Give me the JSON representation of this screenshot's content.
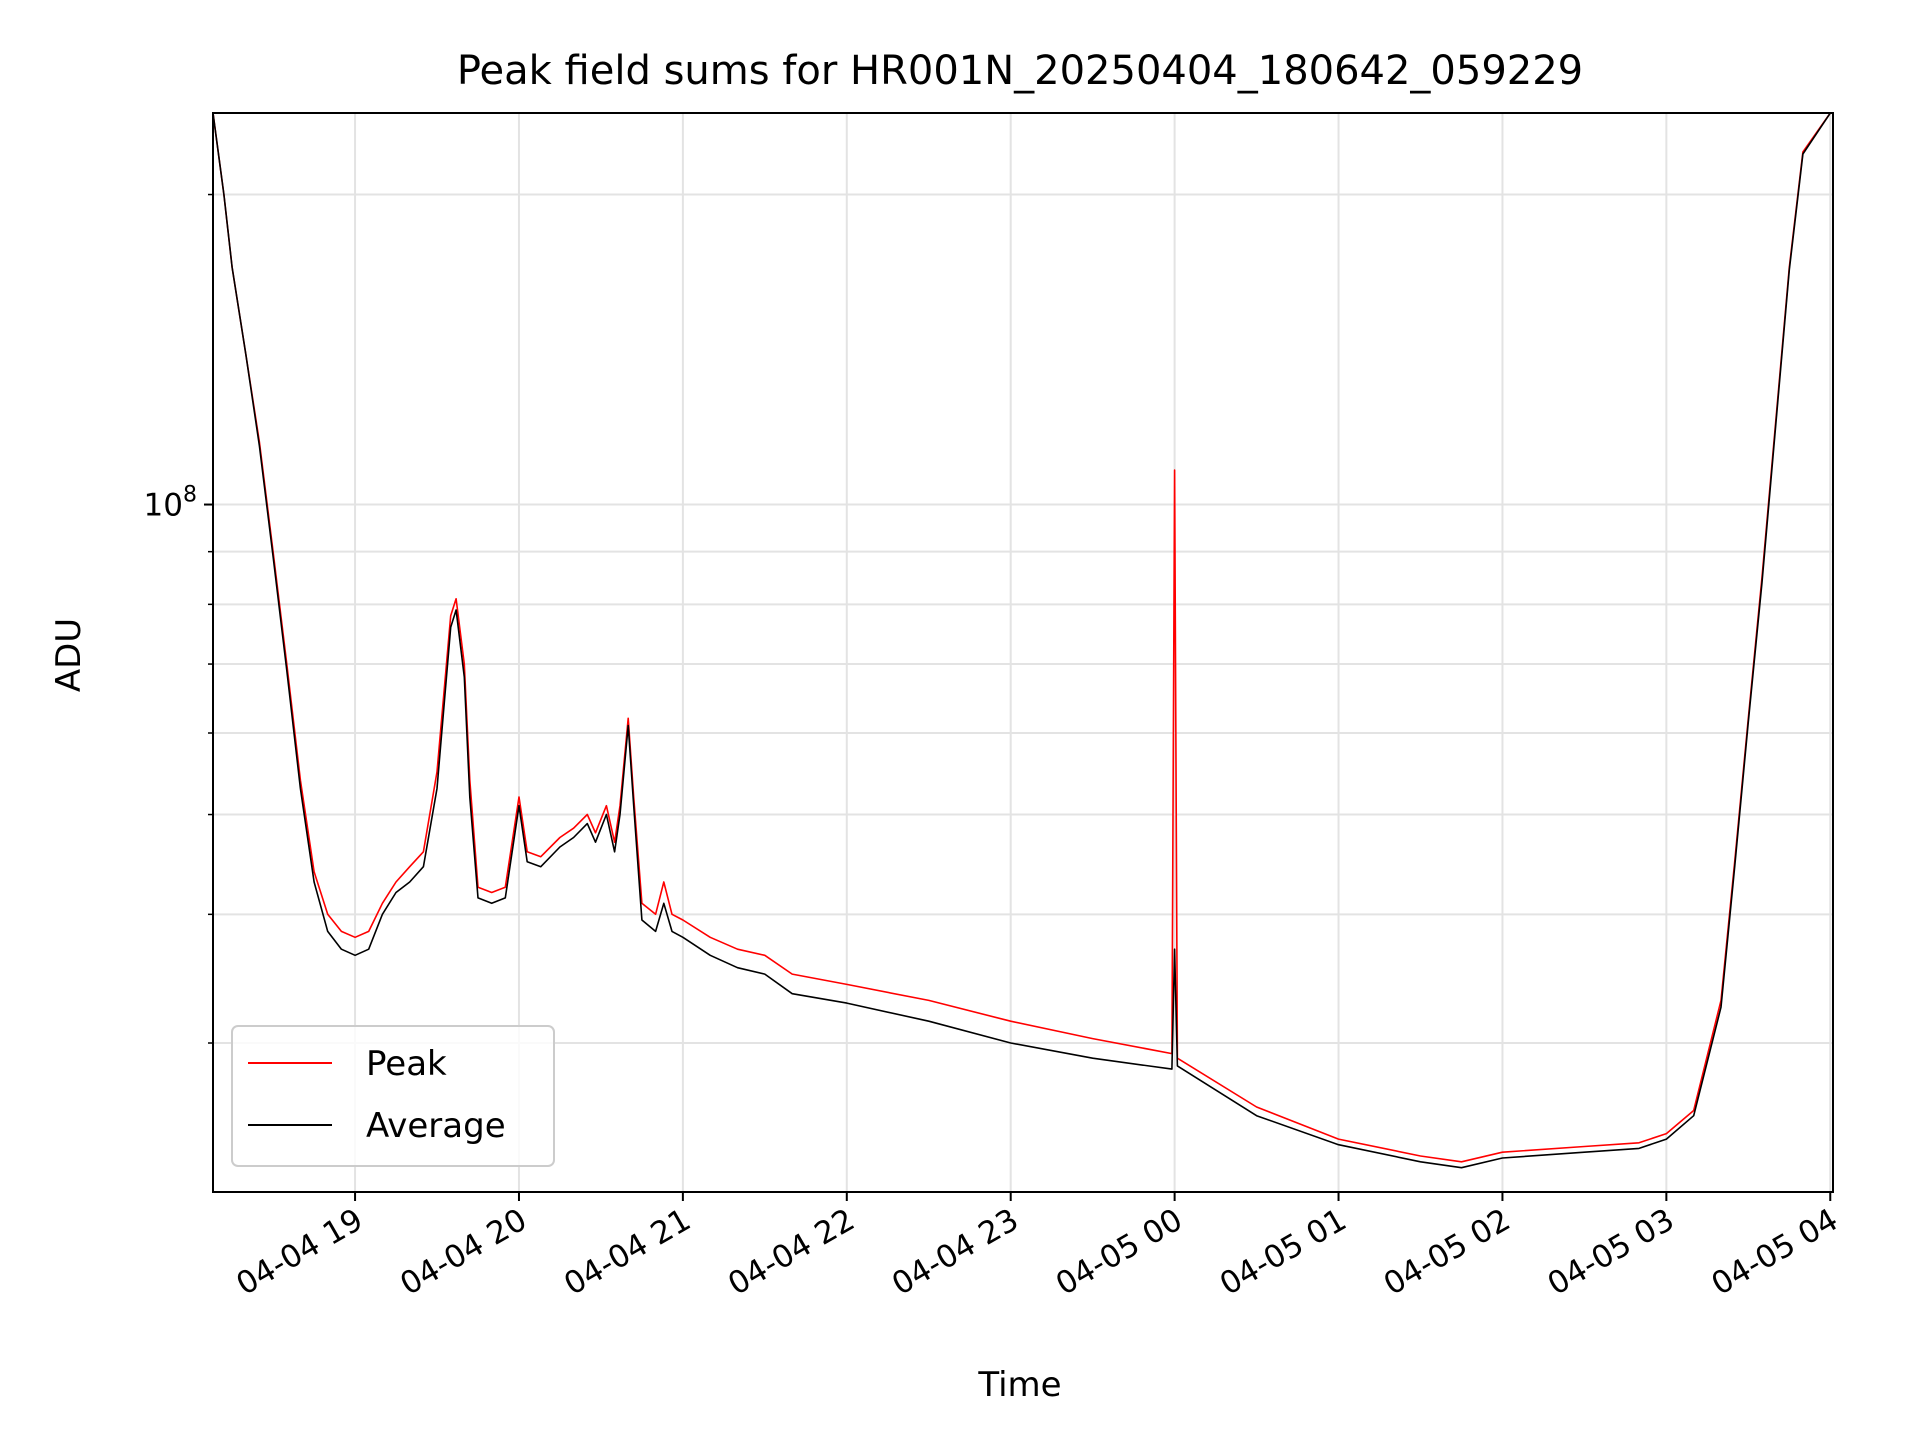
{
  "chart_data": {
    "type": "line",
    "title": "Peak field sums for HR001N_20250404_180642_059229",
    "xlabel": "Time",
    "ylabel": "ADU",
    "yscale": "log",
    "grid": true,
    "legend_position": "lower-left",
    "xlim": [
      "2025-04-04T18:08",
      "2025-04-05T04:01"
    ],
    "ylim": [
      21500000,
      240000000
    ],
    "x_ticks": [
      {
        "time": "2025-04-04T19:00",
        "label": "04-04 19"
      },
      {
        "time": "2025-04-04T20:00",
        "label": "04-04 20"
      },
      {
        "time": "2025-04-04T21:00",
        "label": "04-04 21"
      },
      {
        "time": "2025-04-04T22:00",
        "label": "04-04 22"
      },
      {
        "time": "2025-04-04T23:00",
        "label": "04-04 23"
      },
      {
        "time": "2025-04-05T00:00",
        "label": "04-05 00"
      },
      {
        "time": "2025-04-05T01:00",
        "label": "04-05 01"
      },
      {
        "time": "2025-04-05T02:00",
        "label": "04-05 02"
      },
      {
        "time": "2025-04-05T03:00",
        "label": "04-05 03"
      },
      {
        "time": "2025-04-05T04:00",
        "label": "04-05 04"
      }
    ],
    "y_major_ticks": [
      {
        "value": 100000000,
        "base": "10",
        "exp": "8"
      }
    ],
    "y_minor_ticks": [
      30000000,
      40000000,
      50000000,
      60000000,
      70000000,
      80000000,
      90000000,
      200000000
    ],
    "series": [
      {
        "name": "Peak",
        "color": "#ff0000",
        "points": [
          [
            "2025-04-04T18:08",
            240000000
          ],
          [
            "2025-04-04T18:12",
            200000000
          ],
          [
            "2025-04-04T18:15",
            170000000
          ],
          [
            "2025-04-04T18:20",
            140000000
          ],
          [
            "2025-04-04T18:25",
            115000000
          ],
          [
            "2025-04-04T18:30",
            90000000
          ],
          [
            "2025-04-04T18:35",
            70000000
          ],
          [
            "2025-04-04T18:40",
            54000000
          ],
          [
            "2025-04-04T18:45",
            44000000
          ],
          [
            "2025-04-04T18:50",
            40000000
          ],
          [
            "2025-04-04T18:55",
            38500000
          ],
          [
            "2025-04-04T19:00",
            38000000
          ],
          [
            "2025-04-04T19:05",
            38500000
          ],
          [
            "2025-04-04T19:10",
            41000000
          ],
          [
            "2025-04-04T19:15",
            43000000
          ],
          [
            "2025-04-04T19:20",
            44500000
          ],
          [
            "2025-04-04T19:25",
            46000000
          ],
          [
            "2025-04-04T19:30",
            55000000
          ],
          [
            "2025-04-04T19:35",
            78000000
          ],
          [
            "2025-04-04T19:37",
            81000000
          ],
          [
            "2025-04-04T19:40",
            70000000
          ],
          [
            "2025-04-04T19:42",
            54000000
          ],
          [
            "2025-04-04T19:45",
            42500000
          ],
          [
            "2025-04-04T19:50",
            42000000
          ],
          [
            "2025-04-04T19:55",
            42500000
          ],
          [
            "2025-04-04T20:00",
            52000000
          ],
          [
            "2025-04-04T20:03",
            46000000
          ],
          [
            "2025-04-04T20:08",
            45500000
          ],
          [
            "2025-04-04T20:15",
            47500000
          ],
          [
            "2025-04-04T20:20",
            48500000
          ],
          [
            "2025-04-04T20:25",
            50000000
          ],
          [
            "2025-04-04T20:28",
            48000000
          ],
          [
            "2025-04-04T20:32",
            51000000
          ],
          [
            "2025-04-04T20:35",
            47000000
          ],
          [
            "2025-04-04T20:37",
            51000000
          ],
          [
            "2025-04-04T20:40",
            62000000
          ],
          [
            "2025-04-04T20:42",
            52000000
          ],
          [
            "2025-04-04T20:45",
            41000000
          ],
          [
            "2025-04-04T20:50",
            40000000
          ],
          [
            "2025-04-04T20:53",
            43000000
          ],
          [
            "2025-04-04T20:56",
            40000000
          ],
          [
            "2025-04-04T21:00",
            39500000
          ],
          [
            "2025-04-04T21:10",
            38000000
          ],
          [
            "2025-04-04T21:20",
            37000000
          ],
          [
            "2025-04-04T21:30",
            36500000
          ],
          [
            "2025-04-04T21:40",
            35000000
          ],
          [
            "2025-04-04T22:00",
            34200000
          ],
          [
            "2025-04-04T22:30",
            33000000
          ],
          [
            "2025-04-04T23:00",
            31500000
          ],
          [
            "2025-04-04T23:30",
            30300000
          ],
          [
            "2025-04-04T23:59",
            29300000
          ],
          [
            "2025-04-05T00:00",
            108000000
          ],
          [
            "2025-04-05T00:01",
            29000000
          ],
          [
            "2025-04-05T00:30",
            26000000
          ],
          [
            "2025-04-05T01:00",
            24200000
          ],
          [
            "2025-04-05T01:30",
            23300000
          ],
          [
            "2025-04-05T01:45",
            23000000
          ],
          [
            "2025-04-05T02:00",
            23500000
          ],
          [
            "2025-04-05T02:30",
            23800000
          ],
          [
            "2025-04-05T02:50",
            24000000
          ],
          [
            "2025-04-05T03:00",
            24500000
          ],
          [
            "2025-04-05T03:10",
            25800000
          ],
          [
            "2025-04-05T03:20",
            33000000
          ],
          [
            "2025-04-05T03:25",
            45000000
          ],
          [
            "2025-04-05T03:30",
            62000000
          ],
          [
            "2025-04-05T03:35",
            85000000
          ],
          [
            "2025-04-05T03:40",
            120000000
          ],
          [
            "2025-04-05T03:45",
            170000000
          ],
          [
            "2025-04-05T03:50",
            220000000
          ],
          [
            "2025-04-05T04:00",
            240000000
          ]
        ]
      },
      {
        "name": "Average",
        "color": "#000000",
        "points": [
          [
            "2025-04-04T18:08",
            240000000
          ],
          [
            "2025-04-04T18:12",
            200000000
          ],
          [
            "2025-04-04T18:15",
            170000000
          ],
          [
            "2025-04-04T18:20",
            140000000
          ],
          [
            "2025-04-04T18:25",
            114000000
          ],
          [
            "2025-04-04T18:30",
            89000000
          ],
          [
            "2025-04-04T18:35",
            69000000
          ],
          [
            "2025-04-04T18:40",
            53000000
          ],
          [
            "2025-04-04T18:45",
            43000000
          ],
          [
            "2025-04-04T18:50",
            38500000
          ],
          [
            "2025-04-04T18:55",
            37000000
          ],
          [
            "2025-04-04T19:00",
            36500000
          ],
          [
            "2025-04-04T19:05",
            37000000
          ],
          [
            "2025-04-04T19:10",
            40000000
          ],
          [
            "2025-04-04T19:15",
            42000000
          ],
          [
            "2025-04-04T19:20",
            43000000
          ],
          [
            "2025-04-04T19:25",
            44500000
          ],
          [
            "2025-04-04T19:30",
            53000000
          ],
          [
            "2025-04-04T19:35",
            76000000
          ],
          [
            "2025-04-04T19:37",
            79000000
          ],
          [
            "2025-04-04T19:40",
            68000000
          ],
          [
            "2025-04-04T19:42",
            52000000
          ],
          [
            "2025-04-04T19:45",
            41500000
          ],
          [
            "2025-04-04T19:50",
            41000000
          ],
          [
            "2025-04-04T19:55",
            41500000
          ],
          [
            "2025-04-04T20:00",
            51000000
          ],
          [
            "2025-04-04T20:03",
            45000000
          ],
          [
            "2025-04-04T20:08",
            44500000
          ],
          [
            "2025-04-04T20:15",
            46500000
          ],
          [
            "2025-04-04T20:20",
            47500000
          ],
          [
            "2025-04-04T20:25",
            49000000
          ],
          [
            "2025-04-04T20:28",
            47000000
          ],
          [
            "2025-04-04T20:32",
            50000000
          ],
          [
            "2025-04-04T20:35",
            46000000
          ],
          [
            "2025-04-04T20:37",
            50000000
          ],
          [
            "2025-04-04T20:40",
            61000000
          ],
          [
            "2025-04-04T20:42",
            51000000
          ],
          [
            "2025-04-04T20:45",
            39500000
          ],
          [
            "2025-04-04T20:50",
            38500000
          ],
          [
            "2025-04-04T20:53",
            41000000
          ],
          [
            "2025-04-04T20:56",
            38500000
          ],
          [
            "2025-04-04T21:00",
            38000000
          ],
          [
            "2025-04-04T21:10",
            36500000
          ],
          [
            "2025-04-04T21:20",
            35500000
          ],
          [
            "2025-04-04T21:30",
            35000000
          ],
          [
            "2025-04-04T21:40",
            33500000
          ],
          [
            "2025-04-04T22:00",
            32800000
          ],
          [
            "2025-04-04T22:30",
            31500000
          ],
          [
            "2025-04-04T23:00",
            30000000
          ],
          [
            "2025-04-04T23:30",
            29000000
          ],
          [
            "2025-04-04T23:59",
            28300000
          ],
          [
            "2025-04-05T00:00",
            37000000
          ],
          [
            "2025-04-05T00:01",
            28500000
          ],
          [
            "2025-04-05T00:30",
            25500000
          ],
          [
            "2025-04-05T01:00",
            23900000
          ],
          [
            "2025-04-05T01:30",
            23000000
          ],
          [
            "2025-04-05T01:45",
            22700000
          ],
          [
            "2025-04-05T02:00",
            23200000
          ],
          [
            "2025-04-05T02:30",
            23500000
          ],
          [
            "2025-04-05T02:50",
            23700000
          ],
          [
            "2025-04-05T03:00",
            24200000
          ],
          [
            "2025-04-05T03:10",
            25500000
          ],
          [
            "2025-04-05T03:20",
            32500000
          ],
          [
            "2025-04-05T03:25",
            44500000
          ],
          [
            "2025-04-05T03:30",
            61500000
          ],
          [
            "2025-04-05T03:35",
            84000000
          ],
          [
            "2025-04-05T03:40",
            119000000
          ],
          [
            "2025-04-05T03:45",
            169000000
          ],
          [
            "2025-04-05T03:50",
            219000000
          ],
          [
            "2025-04-05T04:00",
            240000000
          ]
        ]
      }
    ]
  }
}
